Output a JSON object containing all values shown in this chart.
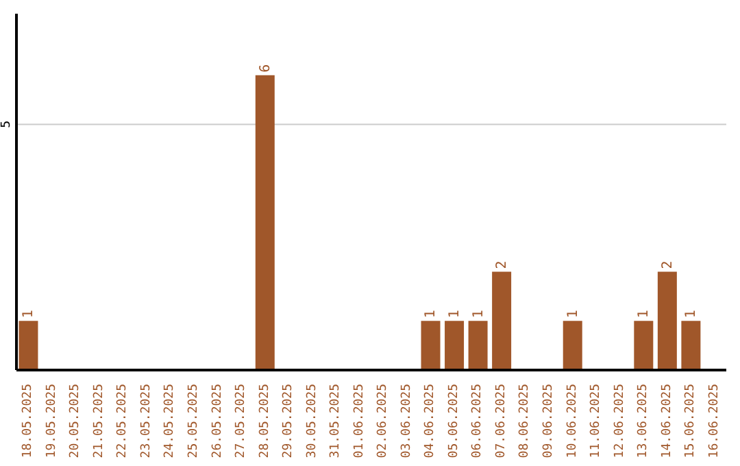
{
  "chart_data": {
    "type": "bar",
    "categories": [
      "18.05.2025",
      "19.05.2025",
      "20.05.2025",
      "21.05.2025",
      "22.05.2025",
      "23.05.2025",
      "24.05.2025",
      "25.05.2025",
      "26.05.2025",
      "27.05.2025",
      "28.05.2025",
      "29.05.2025",
      "30.05.2025",
      "31.05.2025",
      "01.06.2025",
      "02.06.2025",
      "03.06.2025",
      "04.06.2025",
      "05.06.2025",
      "06.06.2025",
      "07.06.2025",
      "08.06.2025",
      "09.06.2025",
      "10.06.2025",
      "11.06.2025",
      "12.06.2025",
      "13.06.2025",
      "14.06.2025",
      "15.06.2025",
      "16.06.2025"
    ],
    "values": [
      1,
      0,
      0,
      0,
      0,
      0,
      0,
      0,
      0,
      0,
      6,
      0,
      0,
      0,
      0,
      0,
      0,
      1,
      1,
      1,
      2,
      0,
      0,
      1,
      0,
      0,
      1,
      2,
      1,
      0
    ],
    "value_labels": [
      "1",
      null,
      null,
      null,
      null,
      null,
      null,
      null,
      null,
      null,
      "6",
      null,
      null,
      null,
      null,
      null,
      null,
      "1",
      "1",
      "1",
      "2",
      null,
      null,
      "1",
      null,
      null,
      "1",
      "2",
      "1",
      null
    ],
    "color": "#a0572a",
    "ylim": [
      0,
      7.25
    ],
    "yticks": [
      5
    ],
    "grid": "y"
  }
}
